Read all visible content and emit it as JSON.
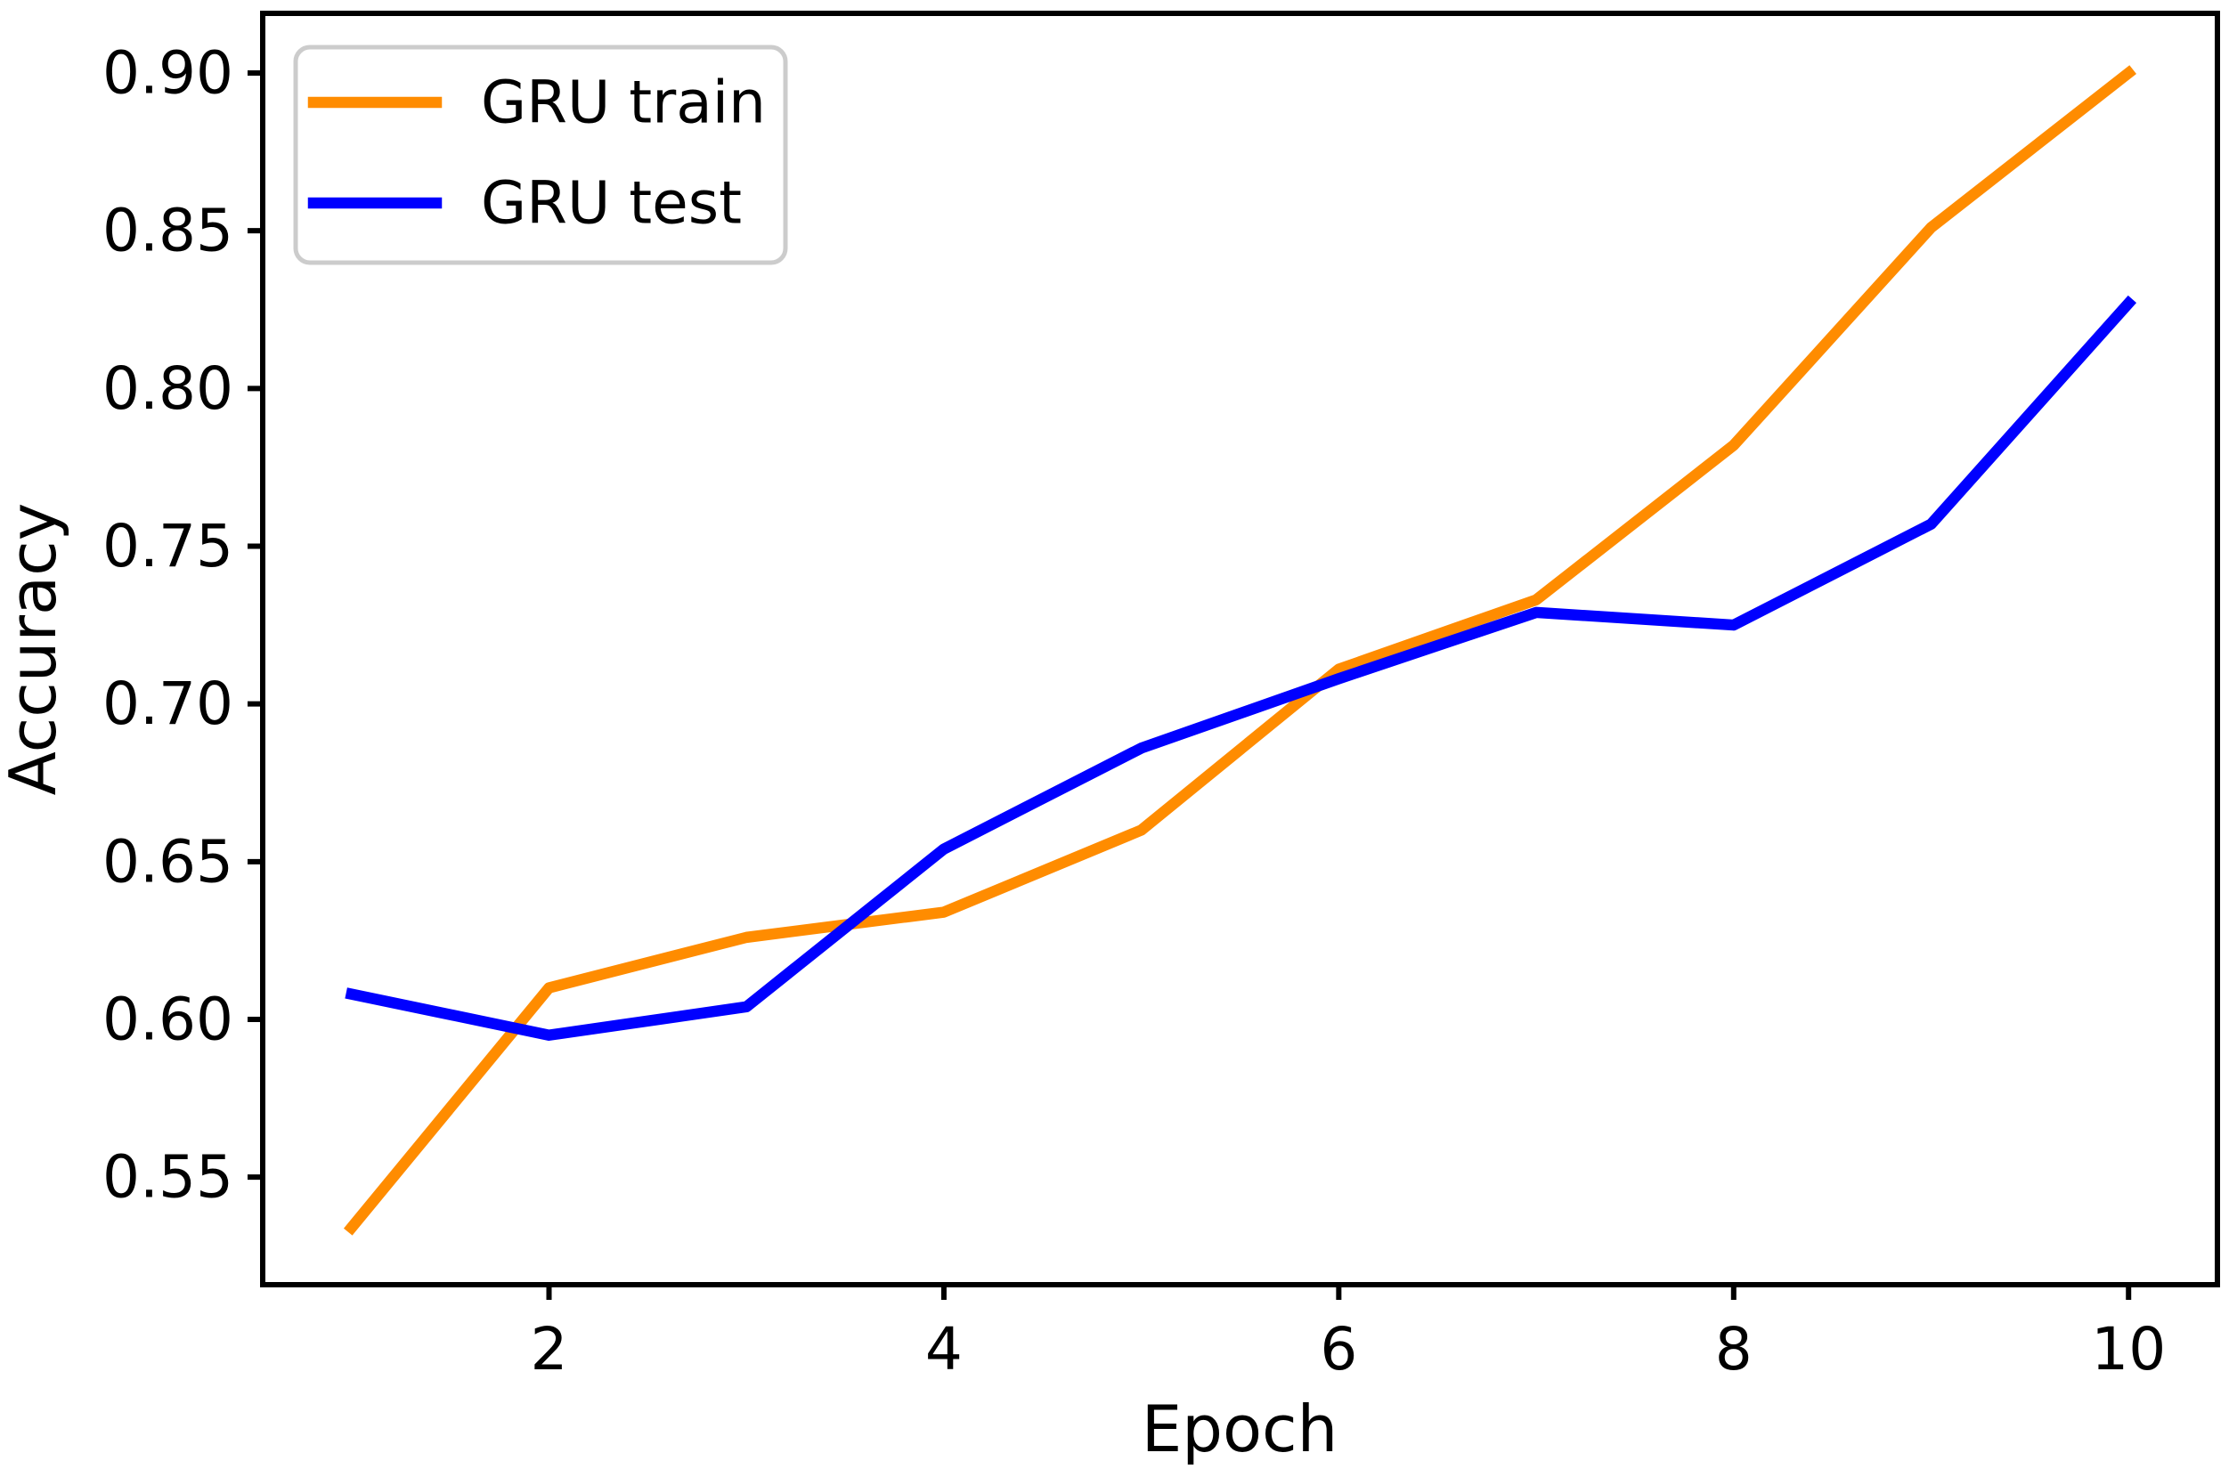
{
  "chart_data": {
    "type": "line",
    "title": "",
    "xlabel": "Epoch",
    "ylabel": "Accuracy",
    "x": [
      1,
      2,
      3,
      4,
      5,
      6,
      7,
      8,
      9,
      10
    ],
    "series": [
      {
        "name": "GRU train",
        "color": "#ff8c00",
        "values": [
          0.534,
          0.61,
          0.626,
          0.634,
          0.66,
          0.711,
          0.733,
          0.782,
          0.851,
          0.9
        ]
      },
      {
        "name": "GRU test",
        "color": "#0000ff",
        "values": [
          0.608,
          0.595,
          0.604,
          0.654,
          0.686,
          0.708,
          0.729,
          0.725,
          0.757,
          0.827
        ]
      }
    ],
    "xticks": [
      2,
      4,
      6,
      8,
      10
    ],
    "yticks": [
      0.55,
      0.6,
      0.65,
      0.7,
      0.75,
      0.8,
      0.85,
      0.9
    ],
    "ytick_labels": [
      "0.55",
      "0.60",
      "0.65",
      "0.70",
      "0.75",
      "0.80",
      "0.85",
      "0.90"
    ],
    "xlim": [
      0.55,
      10.45
    ],
    "ylim": [
      0.5159,
      0.9189
    ],
    "grid": false,
    "legend_position": "upper left",
    "legend_border_color": "#cccccc",
    "axis_color": "#000000",
    "background_color": "#ffffff"
  }
}
